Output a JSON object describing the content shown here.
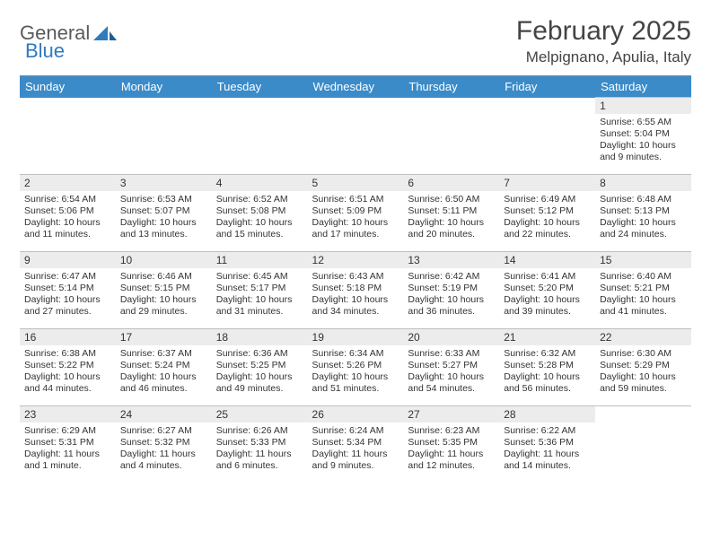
{
  "brand": {
    "word1": "General",
    "word2": "Blue"
  },
  "title": "February 2025",
  "location": "Melpignano, Apulia, Italy",
  "colors": {
    "header_bg": "#3b8bc9",
    "header_text": "#ffffff",
    "daynum_bg": "#ececec",
    "border": "#bfbfbf",
    "logo_gray": "#5a5a5a",
    "logo_blue": "#2f7bbf"
  },
  "columns": [
    "Sunday",
    "Monday",
    "Tuesday",
    "Wednesday",
    "Thursday",
    "Friday",
    "Saturday"
  ],
  "weeks": [
    [
      null,
      null,
      null,
      null,
      null,
      null,
      {
        "n": "1",
        "sr": "6:55 AM",
        "ss": "5:04 PM",
        "dl": "10 hours and 9 minutes."
      }
    ],
    [
      {
        "n": "2",
        "sr": "6:54 AM",
        "ss": "5:06 PM",
        "dl": "10 hours and 11 minutes."
      },
      {
        "n": "3",
        "sr": "6:53 AM",
        "ss": "5:07 PM",
        "dl": "10 hours and 13 minutes."
      },
      {
        "n": "4",
        "sr": "6:52 AM",
        "ss": "5:08 PM",
        "dl": "10 hours and 15 minutes."
      },
      {
        "n": "5",
        "sr": "6:51 AM",
        "ss": "5:09 PM",
        "dl": "10 hours and 17 minutes."
      },
      {
        "n": "6",
        "sr": "6:50 AM",
        "ss": "5:11 PM",
        "dl": "10 hours and 20 minutes."
      },
      {
        "n": "7",
        "sr": "6:49 AM",
        "ss": "5:12 PM",
        "dl": "10 hours and 22 minutes."
      },
      {
        "n": "8",
        "sr": "6:48 AM",
        "ss": "5:13 PM",
        "dl": "10 hours and 24 minutes."
      }
    ],
    [
      {
        "n": "9",
        "sr": "6:47 AM",
        "ss": "5:14 PM",
        "dl": "10 hours and 27 minutes."
      },
      {
        "n": "10",
        "sr": "6:46 AM",
        "ss": "5:15 PM",
        "dl": "10 hours and 29 minutes."
      },
      {
        "n": "11",
        "sr": "6:45 AM",
        "ss": "5:17 PM",
        "dl": "10 hours and 31 minutes."
      },
      {
        "n": "12",
        "sr": "6:43 AM",
        "ss": "5:18 PM",
        "dl": "10 hours and 34 minutes."
      },
      {
        "n": "13",
        "sr": "6:42 AM",
        "ss": "5:19 PM",
        "dl": "10 hours and 36 minutes."
      },
      {
        "n": "14",
        "sr": "6:41 AM",
        "ss": "5:20 PM",
        "dl": "10 hours and 39 minutes."
      },
      {
        "n": "15",
        "sr": "6:40 AM",
        "ss": "5:21 PM",
        "dl": "10 hours and 41 minutes."
      }
    ],
    [
      {
        "n": "16",
        "sr": "6:38 AM",
        "ss": "5:22 PM",
        "dl": "10 hours and 44 minutes."
      },
      {
        "n": "17",
        "sr": "6:37 AM",
        "ss": "5:24 PM",
        "dl": "10 hours and 46 minutes."
      },
      {
        "n": "18",
        "sr": "6:36 AM",
        "ss": "5:25 PM",
        "dl": "10 hours and 49 minutes."
      },
      {
        "n": "19",
        "sr": "6:34 AM",
        "ss": "5:26 PM",
        "dl": "10 hours and 51 minutes."
      },
      {
        "n": "20",
        "sr": "6:33 AM",
        "ss": "5:27 PM",
        "dl": "10 hours and 54 minutes."
      },
      {
        "n": "21",
        "sr": "6:32 AM",
        "ss": "5:28 PM",
        "dl": "10 hours and 56 minutes."
      },
      {
        "n": "22",
        "sr": "6:30 AM",
        "ss": "5:29 PM",
        "dl": "10 hours and 59 minutes."
      }
    ],
    [
      {
        "n": "23",
        "sr": "6:29 AM",
        "ss": "5:31 PM",
        "dl": "11 hours and 1 minute."
      },
      {
        "n": "24",
        "sr": "6:27 AM",
        "ss": "5:32 PM",
        "dl": "11 hours and 4 minutes."
      },
      {
        "n": "25",
        "sr": "6:26 AM",
        "ss": "5:33 PM",
        "dl": "11 hours and 6 minutes."
      },
      {
        "n": "26",
        "sr": "6:24 AM",
        "ss": "5:34 PM",
        "dl": "11 hours and 9 minutes."
      },
      {
        "n": "27",
        "sr": "6:23 AM",
        "ss": "5:35 PM",
        "dl": "11 hours and 12 minutes."
      },
      {
        "n": "28",
        "sr": "6:22 AM",
        "ss": "5:36 PM",
        "dl": "11 hours and 14 minutes."
      },
      null
    ]
  ],
  "labels": {
    "sunrise": "Sunrise:",
    "sunset": "Sunset:",
    "daylight": "Daylight:"
  }
}
